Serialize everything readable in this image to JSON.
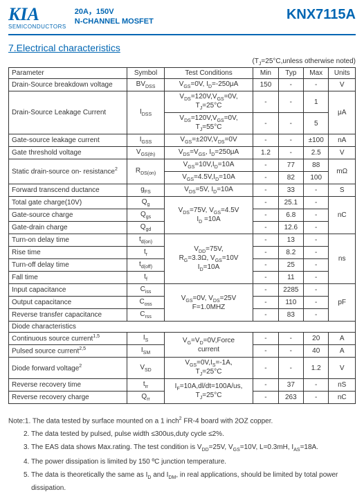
{
  "header": {
    "logo": "KIA",
    "semiconductors": "SEMICONDUCTORS",
    "subtitle_line1": "20A，150V",
    "subtitle_line2": "N-CHANNEL MOSFET",
    "partno": "KNX7115A"
  },
  "section_title": "7.Electrical characteristics",
  "condition_note": "(TJ=25°C,unless otherwise noted)",
  "columns": {
    "parameter": "Parameter",
    "symbol": "Symbol",
    "conditions": "Test Conditions",
    "min": "Min",
    "typ": "Typ",
    "max": "Max",
    "units": "Units"
  },
  "rows": {
    "bvdss": {
      "param": "Drain-Source breakdown voltage",
      "sym": "BVDSS",
      "cond": "VGS=0V, ID=-250μA",
      "min": "150",
      "typ": "-",
      "max": "-",
      "unit": "V"
    },
    "idss1": {
      "cond": "VDS=120V,VGS=0V, TJ=25°C",
      "min": "-",
      "typ": "-",
      "max": "1"
    },
    "idss2": {
      "cond": "VDS=120V,VGS=0V, TJ=55°C",
      "min": "-",
      "typ": "-",
      "max": "5"
    },
    "idss_unit": "μA",
    "idss_param": "Drain-Source Leakage Current",
    "idss_sym": "IDSS",
    "igss": {
      "param": "Gate-source leakage current",
      "sym": "IGSS",
      "cond": "VGS=±20V,VDS=0V",
      "min": "-",
      "typ": "-",
      "max": "±100",
      "unit": "nA"
    },
    "vgsth": {
      "param": "Gate threshold voltage",
      "sym": "VGS(th)",
      "cond": "VDS=VGS, ID=250μA",
      "min": "1.2",
      "typ": "-",
      "max": "2.5",
      "unit": "V"
    },
    "rdson_param": "Static drain-source on- resistance2",
    "rdson_sym": "RDS(on)",
    "rdson1": {
      "cond": "VGS=10V,ID=10A",
      "min": "-",
      "typ": "77",
      "max": "88"
    },
    "rdson2": {
      "cond": "VGS=4.5V,ID=10A",
      "min": "-",
      "typ": "82",
      "max": "100"
    },
    "rdson_unit": "mΩ",
    "gfs": {
      "param": "Forward transcend ductance",
      "sym": "gFS",
      "cond": "VDS=5V, ID=10A",
      "min": "-",
      "typ": "33",
      "max": "-",
      "unit": "S"
    },
    "qg": {
      "param": "Total gate charge(10V)",
      "sym": "Qg",
      "min": "-",
      "typ": "25.1",
      "max": "-"
    },
    "qgs": {
      "param": "Gate-source charge",
      "sym": "Qgs",
      "min": "-",
      "typ": "6.8",
      "max": "-"
    },
    "qgd": {
      "param": "Gate-drain charge",
      "sym": "Qgd",
      "min": "-",
      "typ": "12.6",
      "max": "-"
    },
    "q_cond": "VDS=75V, VGS=4.5V ID =10A",
    "q_unit": "nC",
    "tdon": {
      "param": "Turn-on delay time",
      "sym": "td(on)",
      "min": "-",
      "typ": "13",
      "max": "-"
    },
    "tr": {
      "param": "Rise time",
      "sym": "tr",
      "min": "-",
      "typ": "8.2",
      "max": "-"
    },
    "tdoff": {
      "param": "Turn-off delay time",
      "sym": "td(off)",
      "min": "-",
      "typ": "25",
      "max": "-"
    },
    "tf": {
      "param": "Fall time",
      "sym": "tf",
      "min": "-",
      "typ": "11",
      "max": "-"
    },
    "t_cond": "VDD=75V, RG=3.3Ω, VGS=10V ID=10A",
    "t_unit": "ns",
    "ciss": {
      "param": "Input capacitance",
      "sym": "Ciss",
      "min": "-",
      "typ": "2285",
      "max": "-"
    },
    "coss": {
      "param": "Output capacitance",
      "sym": "Coss",
      "min": "-",
      "typ": "110",
      "max": "-"
    },
    "crss": {
      "param": "Reverse transfer capacitance",
      "sym": "Crss",
      "min": "-",
      "typ": "83",
      "max": "-"
    },
    "c_cond": "VGS=0V, VDS=25V F=1.0MHZ",
    "c_unit": "pF",
    "diode_header": "Diode characteristics",
    "is": {
      "param": "Continuous source current1,5",
      "sym": "IS",
      "min": "-",
      "typ": "-",
      "max": "20",
      "unit": "A"
    },
    "ism": {
      "param": "Pulsed source current2,5",
      "sym": "ISM",
      "min": "-",
      "typ": "-",
      "max": "40",
      "unit": "A"
    },
    "is_cond": "VG=VD=0V,Force current",
    "vsd": {
      "param": "Diode forward voltage2",
      "sym": "VSD",
      "cond": "VGS=0V,IS=-1A, TJ=25°C",
      "min": "-",
      "typ": "-",
      "max": "1.2",
      "unit": "V"
    },
    "trr": {
      "param": "Reverse recovery time",
      "sym": "trr",
      "min": "-",
      "typ": "37",
      "max": "-",
      "unit": "nS"
    },
    "qrr": {
      "param": "Reverse recovery charge",
      "sym": "Qrr",
      "min": "-",
      "typ": "263",
      "max": "-",
      "unit": "nC"
    },
    "rr_cond": "IF=10A,dl/dt=100A/us, TJ=25°C"
  },
  "notes": {
    "n1": "Note:1. The data tested by surface mounted on a 1 inch2 FR-4 board with 2OZ copper.",
    "n2": "2. The data tested by pulsed, pulse width  ≤300us,duty cycle ≤2%.",
    "n3": "3. The EAS data shows Max.rating. The test condition is VDD=25V, VGS=10V, L=0.3mH, IAS=18A.",
    "n4": "4. The power dissipation is limited by 150 ºC junction temperature.",
    "n5": "5. The data is theoretically the same as ID and IDM, in real applications, should be limited by total power dissipation."
  }
}
